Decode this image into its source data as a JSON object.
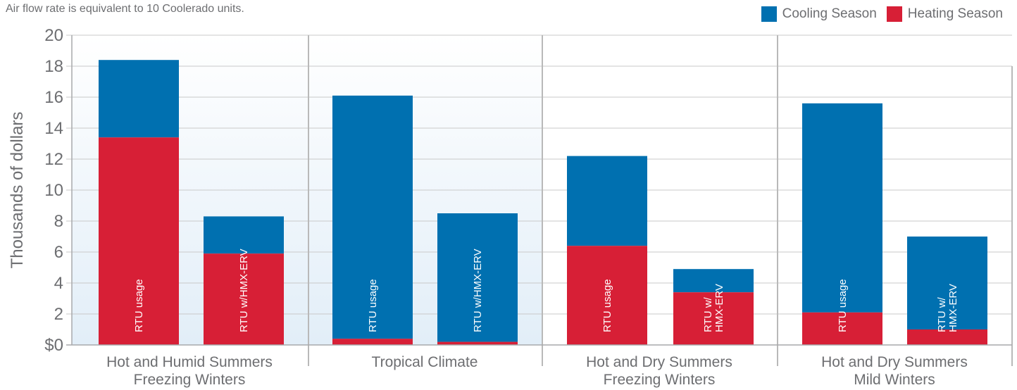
{
  "note": "Air flow rate is equivalent to 10 Coolerado units.",
  "colors": {
    "cooling": "#0070b0",
    "heating": "#d71f36",
    "grid": "#c9c9c9",
    "divider": "#b9b9b9",
    "panel_top": "#ffffff",
    "panel_bottom": "#e2eef8"
  },
  "chart_data": {
    "type": "bar",
    "stacked": true,
    "ylabel": "Thousands of dollars",
    "ylim": [
      0,
      20
    ],
    "yticks": [
      "$0",
      "2",
      "4",
      "6",
      "8",
      "10",
      "12",
      "14",
      "16",
      "18",
      "20"
    ],
    "legend": {
      "placement": "top-right",
      "entries": [
        "Cooling Season",
        "Heating Season"
      ]
    },
    "groups": [
      {
        "label": [
          "Hot and Humid Summers",
          "Freezing Winters"
        ],
        "shaded": true
      },
      {
        "label": [
          "Tropical Climate"
        ],
        "shaded": true
      },
      {
        "label": [
          "Hot and Dry Summers",
          "Freezing Winters"
        ],
        "shaded": false
      },
      {
        "label": [
          "Hot and Dry Summers",
          "Mild Winters"
        ],
        "shaded": false
      }
    ],
    "bars": [
      {
        "group": 0,
        "label": [
          "RTU usage"
        ],
        "heating": 13.4,
        "cooling": 5.0,
        "total": 18.4
      },
      {
        "group": 0,
        "label": [
          "RTU w/HMX-ERV"
        ],
        "heating": 5.9,
        "cooling": 2.4,
        "total": 8.3
      },
      {
        "group": 1,
        "label": [
          "RTU usage"
        ],
        "heating": 0.4,
        "cooling": 15.7,
        "total": 16.1
      },
      {
        "group": 1,
        "label": [
          "RTU w/HMX-ERV"
        ],
        "heating": 0.2,
        "cooling": 8.3,
        "total": 8.5
      },
      {
        "group": 2,
        "label": [
          "RTU usage"
        ],
        "heating": 6.4,
        "cooling": 5.8,
        "total": 12.2
      },
      {
        "group": 2,
        "label": [
          "RTU w/",
          "HMX-ERV"
        ],
        "heating": 3.4,
        "cooling": 1.5,
        "total": 4.9
      },
      {
        "group": 3,
        "label": [
          "RTU usage"
        ],
        "heating": 2.1,
        "cooling": 13.5,
        "total": 15.6
      },
      {
        "group": 3,
        "label": [
          "RTU w/",
          "HMX-ERV"
        ],
        "heating": 1.0,
        "cooling": 6.0,
        "total": 7.0
      }
    ],
    "series": [
      {
        "name": "Heating Season",
        "values": [
          13.4,
          5.9,
          0.4,
          0.2,
          6.4,
          3.4,
          2.1,
          1.0
        ]
      },
      {
        "name": "Cooling Season",
        "values": [
          5.0,
          2.4,
          15.7,
          8.3,
          5.8,
          1.5,
          13.5,
          6.0
        ]
      }
    ]
  }
}
